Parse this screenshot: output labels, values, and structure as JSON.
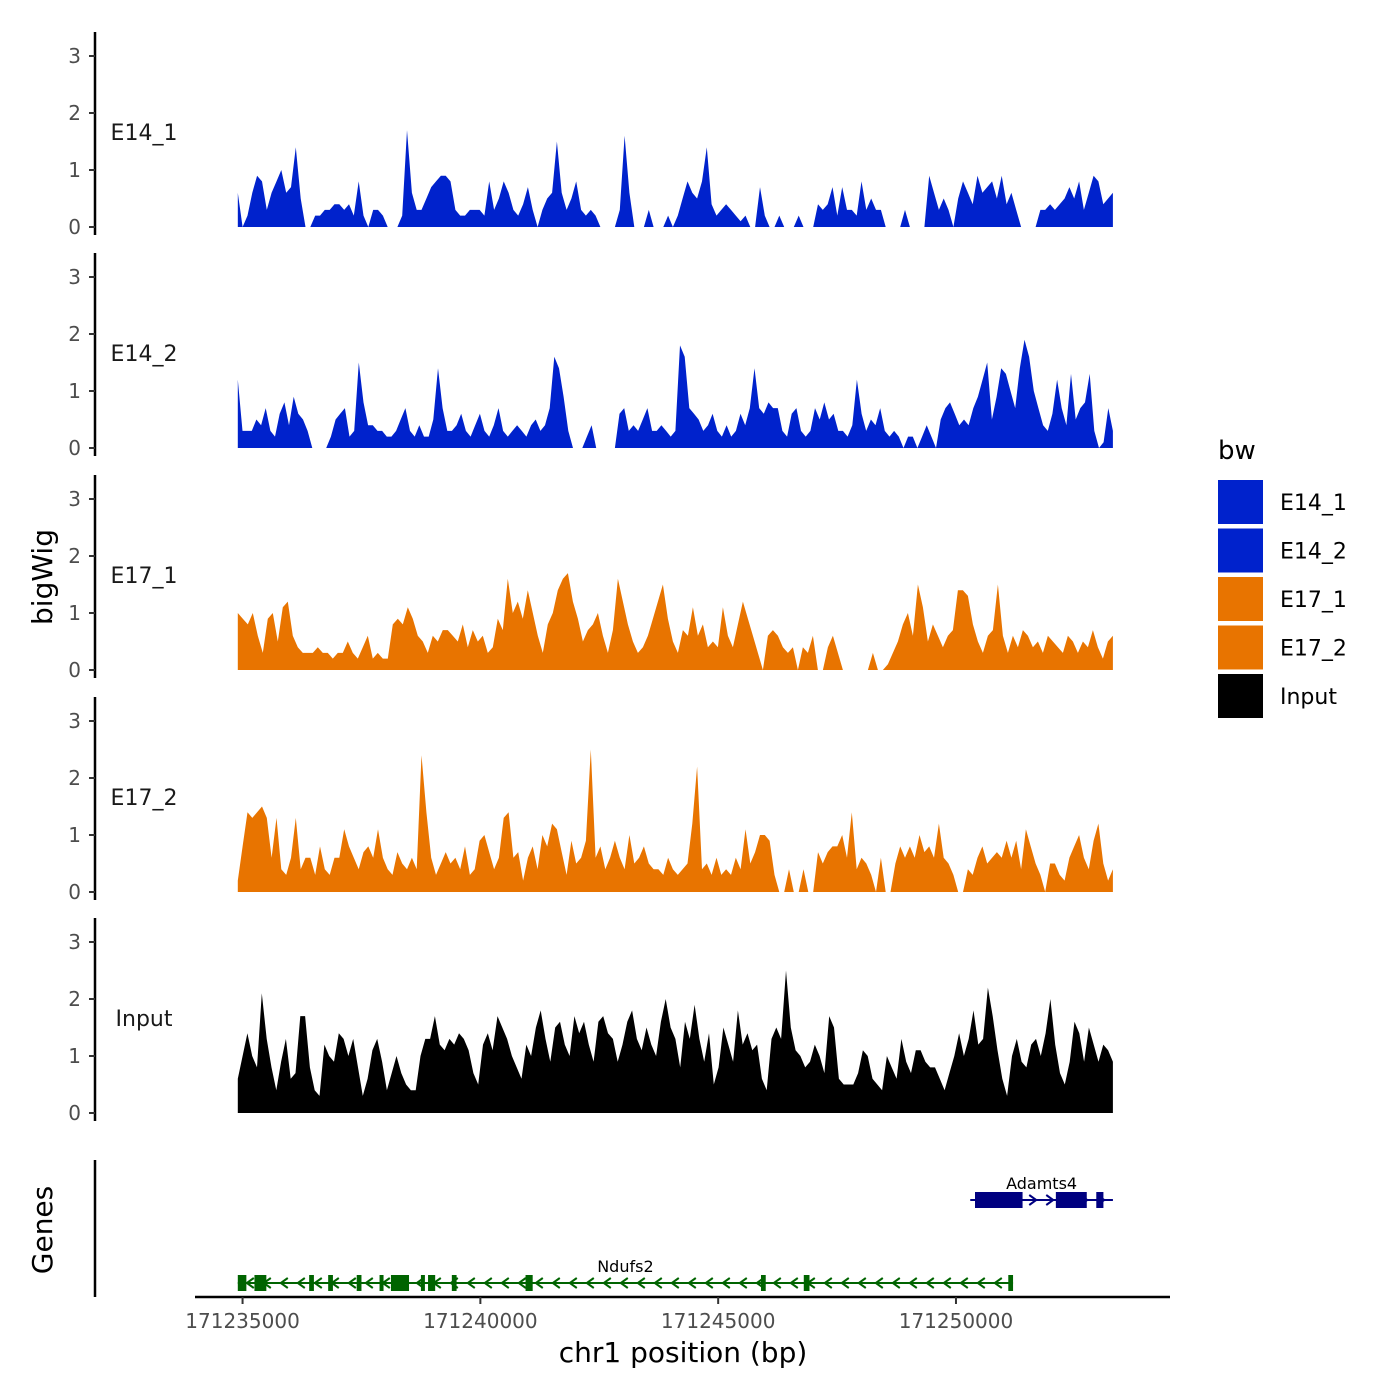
{
  "chart_data": {
    "type": "area",
    "title": "",
    "ylabel": "bigWig",
    "xlabel": "chr1 position (bp)",
    "chromosome": "chr1",
    "xlim": [
      171234000,
      171254500
    ],
    "data_range": [
      171234900,
      171253300
    ],
    "ylim": [
      0,
      3.4
    ],
    "yticks": [
      0,
      1,
      2,
      3
    ],
    "xticks": [
      171235000,
      171240000,
      171245000,
      171250000
    ],
    "legend": {
      "title": "bw",
      "position": "right",
      "entries": [
        {
          "name": "E14_1",
          "color": "#0022CC"
        },
        {
          "name": "E14_2",
          "color": "#0022CC"
        },
        {
          "name": "E17_1",
          "color": "#E87400"
        },
        {
          "name": "E17_2",
          "color": "#E87400"
        },
        {
          "name": "Input",
          "color": "#000000"
        }
      ]
    },
    "series": [
      {
        "name": "E14_1",
        "color": "#0022CC",
        "values": [
          0.6,
          0,
          0.2,
          0.6,
          0.9,
          0.8,
          0.3,
          0.6,
          0.8,
          1.0,
          0.6,
          0.7,
          1.4,
          0.5,
          0,
          0,
          0.2,
          0.2,
          0.3,
          0.3,
          0.4,
          0.4,
          0.3,
          0.4,
          0.2,
          0.8,
          0.2,
          0,
          0.3,
          0.3,
          0.2,
          0,
          0,
          0,
          0.2,
          1.7,
          0.6,
          0.3,
          0.3,
          0.5,
          0.7,
          0.8,
          0.9,
          0.9,
          0.8,
          0.3,
          0.2,
          0.2,
          0.3,
          0.3,
          0.3,
          0.2,
          0.8,
          0.3,
          0.5,
          0.8,
          0.6,
          0.3,
          0.2,
          0.4,
          0.7,
          0.3,
          0,
          0.3,
          0.5,
          0.6,
          1.5,
          0.6,
          0.3,
          0.5,
          0.8,
          0.3,
          0.2,
          0.3,
          0.2,
          0,
          0,
          0,
          0,
          0.3,
          1.6,
          0.6,
          0,
          0,
          0,
          0.3,
          0,
          0,
          0,
          0.2,
          0,
          0.2,
          0.5,
          0.8,
          0.6,
          0.5,
          0.8,
          1.4,
          0.4,
          0.2,
          0.3,
          0.4,
          0.3,
          0.2,
          0.1,
          0.2,
          0,
          0,
          0.7,
          0.2,
          0,
          0,
          0.2,
          0,
          0,
          0,
          0.2,
          0,
          0,
          0,
          0.4,
          0.3,
          0.4,
          0.7,
          0.2,
          0.7,
          0.3,
          0.3,
          0.2,
          0.8,
          0.3,
          0.5,
          0.3,
          0.3,
          0,
          0,
          0,
          0,
          0.3,
          0,
          0,
          0,
          0,
          0.9,
          0.6,
          0.3,
          0.5,
          0.3,
          0,
          0.5,
          0.8,
          0.6,
          0.4,
          0.9,
          0.6,
          0.7,
          0.8,
          0.5,
          0.9,
          0.4,
          0.6,
          0.3,
          0,
          0,
          0,
          0,
          0.3,
          0.3,
          0.4,
          0.3,
          0.4,
          0.5,
          0.7,
          0.5,
          0.8,
          0.3,
          0.6,
          0.9,
          0.8,
          0.4,
          0.5,
          0.6
        ]
      },
      {
        "name": "E14_2",
        "color": "#0022CC",
        "values": [
          1.2,
          0.3,
          0.3,
          0.3,
          0.5,
          0.4,
          0.7,
          0.3,
          0.2,
          0.6,
          0.8,
          0.4,
          0.9,
          0.6,
          0.5,
          0.3,
          0,
          0,
          0,
          0,
          0.2,
          0.5,
          0.6,
          0.7,
          0.2,
          0.3,
          1.5,
          0.8,
          0.4,
          0.4,
          0.3,
          0.3,
          0.2,
          0.2,
          0.3,
          0.5,
          0.7,
          0.3,
          0.2,
          0.4,
          0.2,
          0.2,
          0.5,
          1.4,
          0.7,
          0.3,
          0.3,
          0.4,
          0.6,
          0.3,
          0.2,
          0.4,
          0.6,
          0.3,
          0.2,
          0.4,
          0.7,
          0.3,
          0.2,
          0.3,
          0.4,
          0.3,
          0.2,
          0.4,
          0.5,
          0.3,
          0.4,
          0.7,
          1.6,
          1.4,
          0.9,
          0.3,
          0,
          0,
          0,
          0.2,
          0.4,
          0,
          0,
          0,
          0,
          0,
          0.6,
          0.7,
          0.3,
          0.4,
          0.3,
          0.5,
          0.7,
          0.3,
          0.3,
          0.4,
          0.3,
          0.2,
          0.3,
          1.8,
          1.6,
          0.7,
          0.6,
          0.5,
          0.3,
          0.4,
          0.6,
          0.3,
          0.2,
          0.4,
          0.2,
          0.3,
          0.6,
          0.4,
          0.7,
          1.4,
          0.7,
          0.6,
          0.8,
          0.7,
          0.7,
          0.3,
          0.2,
          0.6,
          0.7,
          0.3,
          0.2,
          0.3,
          0.7,
          0.5,
          0.8,
          0.5,
          0.6,
          0.3,
          0.3,
          0.2,
          0.4,
          1.2,
          0.6,
          0.3,
          0.5,
          0.4,
          0.7,
          0.3,
          0.2,
          0.3,
          0.2,
          0,
          0.2,
          0.2,
          0,
          0.2,
          0.4,
          0.2,
          0,
          0.5,
          0.7,
          0.8,
          0.6,
          0.4,
          0.5,
          0.4,
          0.7,
          0.9,
          1.2,
          1.5,
          0.5,
          0.9,
          1.4,
          1.3,
          1.0,
          0.7,
          1.4,
          1.9,
          1.6,
          1.0,
          0.7,
          0.4,
          0.3,
          0.6,
          1.2,
          0.7,
          0.4,
          1.3,
          0.5,
          0.7,
          0.8,
          1.3,
          0.3,
          0,
          0.1,
          0.7,
          0.3
        ]
      },
      {
        "name": "E17_1",
        "color": "#E87400",
        "values": [
          1.0,
          0.9,
          0.8,
          1.0,
          0.6,
          0.3,
          0.9,
          1.0,
          0.5,
          1.1,
          1.2,
          0.6,
          0.4,
          0.3,
          0.3,
          0.3,
          0.4,
          0.3,
          0.3,
          0.2,
          0.3,
          0.3,
          0.5,
          0.3,
          0.2,
          0.4,
          0.6,
          0.2,
          0.3,
          0.2,
          0.2,
          0.8,
          0.9,
          0.8,
          1.1,
          0.9,
          0.6,
          0.5,
          0.3,
          0.6,
          0.5,
          0.7,
          0.7,
          0.6,
          0.5,
          0.8,
          0.4,
          0.7,
          0.5,
          0.6,
          0.3,
          0.4,
          0.9,
          0.7,
          1.6,
          1.0,
          1.2,
          0.9,
          1.4,
          1.0,
          0.6,
          0.3,
          0.8,
          1.0,
          1.4,
          1.6,
          1.7,
          1.2,
          0.9,
          0.5,
          0.7,
          0.8,
          1.0,
          0.6,
          0.3,
          0.7,
          1.6,
          1.2,
          0.8,
          0.5,
          0.3,
          0.4,
          0.6,
          0.9,
          1.2,
          1.5,
          0.9,
          0.5,
          0.3,
          0.7,
          0.6,
          1.1,
          0.6,
          0.8,
          0.4,
          0.5,
          0.4,
          1.1,
          0.6,
          0.4,
          0.8,
          1.2,
          0.9,
          0.6,
          0.3,
          0,
          0.6,
          0.7,
          0.6,
          0.4,
          0.3,
          0.4,
          0,
          0.4,
          0.3,
          0.6,
          0,
          0,
          0.4,
          0.6,
          0.3,
          0,
          0,
          0,
          0,
          0,
          0,
          0.3,
          0,
          0,
          0.1,
          0.3,
          0.5,
          0.8,
          1.0,
          0.6,
          1.5,
          1.1,
          0.5,
          0.8,
          0.6,
          0.4,
          0.6,
          0.7,
          1.4,
          1.4,
          1.3,
          0.8,
          0.5,
          0.3,
          0.6,
          0.7,
          1.5,
          0.6,
          0.3,
          0.6,
          0.4,
          0.7,
          0.6,
          0.4,
          0.5,
          0.3,
          0.6,
          0.5,
          0.4,
          0.3,
          0.6,
          0.5,
          0.3,
          0.5,
          0.4,
          0.7,
          0.4,
          0.2,
          0.5,
          0.6
        ]
      },
      {
        "name": "E17_2",
        "color": "#E87400",
        "values": [
          0.2,
          0.8,
          1.4,
          1.3,
          1.4,
          1.5,
          1.3,
          0.6,
          1.3,
          0.4,
          0.3,
          0.6,
          1.3,
          0.4,
          0.6,
          0.6,
          0.3,
          0.8,
          0.4,
          0.3,
          0.6,
          0.6,
          1.1,
          0.8,
          0.6,
          0.4,
          0.7,
          0.8,
          0.6,
          1.1,
          0.6,
          0.4,
          0.3,
          0.7,
          0.5,
          0.4,
          0.6,
          0.4,
          2.4,
          1.4,
          0.6,
          0.3,
          0.5,
          0.7,
          0.5,
          0.6,
          0.4,
          0.8,
          0.3,
          0.4,
          0.9,
          1.0,
          0.7,
          0.4,
          0.6,
          1.3,
          1.4,
          0.6,
          0.7,
          0.2,
          0.6,
          0.8,
          0.4,
          1.0,
          0.8,
          1.2,
          1.1,
          0.7,
          0.3,
          0.9,
          0.5,
          0.6,
          0.9,
          2.5,
          0.6,
          0.8,
          0.4,
          0.6,
          0.9,
          0.6,
          0.4,
          1.0,
          0.5,
          0.6,
          0.8,
          0.5,
          0.4,
          0.4,
          0.3,
          0.6,
          0.4,
          0.3,
          0.4,
          0.5,
          1.2,
          2.2,
          0.4,
          0.5,
          0.3,
          0.6,
          0.3,
          0.4,
          0.3,
          0.6,
          0.4,
          1.1,
          0.5,
          0.7,
          1.0,
          1.0,
          0.9,
          0.3,
          0,
          0,
          0.4,
          0,
          0,
          0.4,
          0,
          0,
          0.7,
          0.5,
          0.7,
          0.8,
          0.8,
          1.0,
          0.6,
          1.4,
          0.4,
          0.6,
          0.5,
          0.3,
          0,
          0.6,
          0,
          0,
          0.5,
          0.8,
          0.6,
          0.8,
          0.6,
          1.0,
          0.7,
          0.8,
          0.6,
          1.2,
          0.6,
          0.5,
          0.3,
          0,
          0,
          0.4,
          0.3,
          0.6,
          0.8,
          0.5,
          0.6,
          0.7,
          0.6,
          0.9,
          0.6,
          0.9,
          0.4,
          1.1,
          0.8,
          0.5,
          0.3,
          0,
          0.5,
          0.5,
          0.3,
          0.2,
          0.6,
          0.8,
          1.0,
          0.6,
          0.4,
          0.9,
          1.2,
          0.5,
          0.2,
          0.4
        ]
      },
      {
        "name": "Input",
        "color": "#000000",
        "values": [
          0.6,
          1.0,
          1.4,
          1.0,
          0.8,
          2.1,
          1.3,
          0.8,
          0.4,
          0.9,
          1.3,
          0.6,
          0.7,
          1.7,
          1.7,
          0.8,
          0.4,
          0.3,
          1.2,
          1.0,
          0.9,
          1.4,
          1.3,
          1.0,
          1.3,
          0.8,
          0.3,
          0.6,
          1.1,
          1.3,
          0.9,
          0.4,
          0.7,
          1.0,
          0.7,
          0.5,
          0.4,
          0.4,
          1.0,
          1.3,
          1.3,
          1.7,
          1.2,
          1.1,
          1.3,
          1.2,
          1.4,
          1.3,
          1.1,
          0.7,
          0.5,
          1.2,
          1.4,
          1.1,
          1.7,
          1.5,
          1.3,
          1.0,
          0.8,
          0.6,
          1.2,
          1.0,
          1.5,
          1.8,
          1.3,
          0.9,
          1.5,
          1.6,
          1.2,
          1.0,
          1.7,
          1.4,
          1.6,
          1.2,
          0.9,
          1.6,
          1.7,
          1.4,
          1.3,
          0.9,
          1.2,
          1.6,
          1.8,
          1.3,
          1.1,
          1.5,
          1.2,
          1.0,
          1.6,
          2.0,
          1.5,
          1.3,
          0.8,
          1.6,
          1.3,
          1.9,
          1.3,
          0.9,
          1.4,
          0.5,
          0.8,
          1.5,
          1.2,
          0.9,
          1.8,
          1.2,
          1.4,
          1.1,
          1.2,
          0.6,
          0.4,
          1.3,
          1.5,
          1.3,
          2.5,
          1.5,
          1.1,
          1.0,
          0.8,
          0.9,
          1.2,
          1.0,
          0.7,
          1.7,
          1.5,
          0.6,
          0.5,
          0.5,
          0.5,
          0.7,
          1.1,
          1.0,
          0.6,
          0.5,
          0.4,
          1.0,
          0.8,
          0.6,
          1.3,
          0.9,
          0.7,
          1.1,
          1.1,
          0.9,
          0.8,
          0.8,
          0.6,
          0.4,
          0.7,
          1.0,
          1.4,
          1.0,
          1.3,
          1.8,
          1.2,
          1.3,
          2.2,
          1.7,
          1.1,
          0.6,
          0.3,
          1.0,
          1.3,
          0.9,
          0.8,
          1.2,
          1.3,
          1.0,
          1.4,
          2.0,
          1.2,
          0.7,
          0.5,
          0.9,
          1.6,
          1.4,
          0.9,
          1.5,
          1.2,
          0.9,
          1.2,
          1.1,
          0.9
        ]
      }
    ],
    "genes": {
      "title": "Genes",
      "items": [
        {
          "name": "Ndufs2",
          "strand": "-",
          "color": "#006400",
          "start": 171234900,
          "end": 171251200,
          "exons": [
            [
              171234900,
              171235080
            ],
            [
              171235250,
              171235500
            ],
            [
              171236400,
              171236500
            ],
            [
              171236800,
              171236900
            ],
            [
              171237400,
              171237500
            ],
            [
              171237880,
              171237950
            ],
            [
              171238120,
              171238500
            ],
            [
              171238750,
              171238800
            ],
            [
              171238900,
              171239050
            ],
            [
              171239400,
              171239500
            ],
            [
              171240950,
              171241100
            ],
            [
              171245900,
              171246000
            ],
            [
              171246800,
              171246920
            ],
            [
              171251100,
              171251200
            ]
          ]
        },
        {
          "name": "Adamts4",
          "strand": "+",
          "color": "#000080",
          "start": 171250300,
          "end": 171253300,
          "exons": [
            [
              171250400,
              171251400
            ],
            [
              171252100,
              171252750
            ],
            [
              171252950,
              171253100
            ]
          ]
        }
      ]
    }
  }
}
